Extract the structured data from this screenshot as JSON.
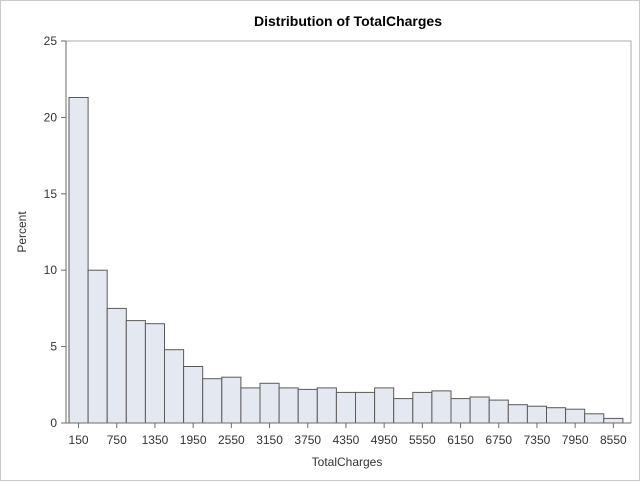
{
  "chart_data": {
    "type": "bar",
    "title": "Distribution of TotalCharges",
    "xlabel": "TotalCharges",
    "ylabel": "Percent",
    "ylim": [
      0,
      25
    ],
    "y_ticks": [
      0,
      5,
      10,
      15,
      20,
      25
    ],
    "bin_width": 300,
    "categories": [
      "150",
      "450",
      "750",
      "1050",
      "1350",
      "1650",
      "1950",
      "2250",
      "2550",
      "2850",
      "3150",
      "3450",
      "3750",
      "4050",
      "4350",
      "4650",
      "4950",
      "5250",
      "5550",
      "5850",
      "6150",
      "6450",
      "6750",
      "7050",
      "7350",
      "7650",
      "7950",
      "8250",
      "8550"
    ],
    "x_tick_labels": [
      "150",
      "750",
      "1350",
      "1950",
      "2550",
      "3150",
      "3750",
      "4350",
      "4950",
      "5550",
      "6150",
      "6750",
      "7350",
      "7950",
      "8550"
    ],
    "values": [
      21.3,
      10.0,
      7.5,
      6.7,
      6.5,
      4.8,
      3.7,
      2.9,
      3.0,
      2.3,
      2.6,
      2.3,
      2.2,
      2.3,
      2.0,
      2.0,
      2.3,
      1.6,
      2.0,
      2.1,
      1.6,
      1.7,
      1.5,
      1.2,
      1.1,
      1.0,
      0.9,
      0.6,
      0.3
    ],
    "colors": {
      "bar_fill": "#e4e8f1",
      "bar_stroke": "#5a5a5a"
    },
    "grid": false
  }
}
